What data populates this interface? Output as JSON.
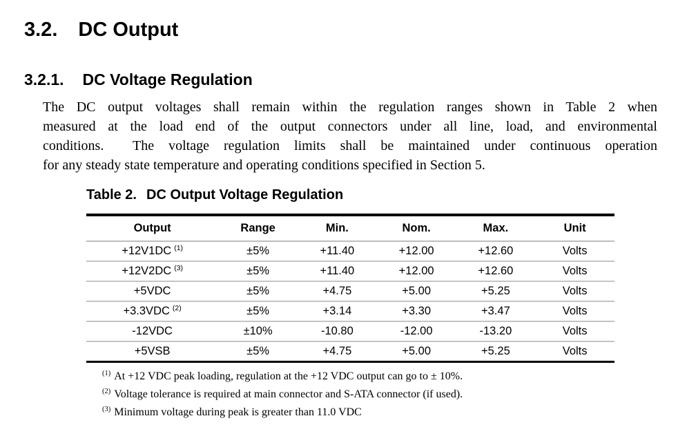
{
  "page": {
    "heading1": {
      "number": "3.2.",
      "title": "DC Output"
    },
    "heading2": {
      "number": "3.2.1.",
      "title": "DC Voltage Regulation"
    },
    "paragraph_lines": [
      "The DC output voltages shall remain within the regulation ranges shown in Table 2 when",
      "measured at the load end of the output connectors under all line, load, and environmental",
      "conditions.  The voltage regulation limits shall be maintained under continuous operation",
      "for any steady state temperature and operating conditions specified in Section 5."
    ]
  },
  "table": {
    "caption": {
      "label": "Table 2.",
      "title": "DC Output Voltage Regulation"
    },
    "headers": [
      "Output",
      "Range",
      "Min.",
      "Nom.",
      "Max.",
      "Unit"
    ],
    "rows": [
      {
        "output": "+12V1DC",
        "footnote": "(1)",
        "range": "±5%",
        "min": "+11.40",
        "nom": "+12.00",
        "max": "+12.60",
        "unit": "Volts"
      },
      {
        "output": "+12V2DC",
        "footnote": "(3)",
        "range": "±5%",
        "min": "+11.40",
        "nom": "+12.00",
        "max": "+12.60",
        "unit": "Volts"
      },
      {
        "output": "+5VDC",
        "footnote": "",
        "range": "±5%",
        "min": "+4.75",
        "nom": "+5.00",
        "max": "+5.25",
        "unit": "Volts"
      },
      {
        "output": "+3.3VDC",
        "footnote": "(2)",
        "range": "±5%",
        "min": "+3.14",
        "nom": "+3.30",
        "max": "+3.47",
        "unit": "Volts"
      },
      {
        "output": "-12VDC",
        "footnote": "",
        "range": "±10%",
        "min": "-10.80",
        "nom": "-12.00",
        "max": "-13.20",
        "unit": "Volts"
      },
      {
        "output": "+5VSB",
        "footnote": "",
        "range": "±5%",
        "min": "+4.75",
        "nom": "+5.00",
        "max": "+5.25",
        "unit": "Volts"
      }
    ]
  },
  "footnotes": [
    {
      "marker": "(1)",
      "text": "At +12 VDC peak loading, regulation at the +12 VDC output can go to ± 10%."
    },
    {
      "marker": "(2)",
      "text": "Voltage tolerance is required at main connector and S-ATA connector (if used)."
    },
    {
      "marker": "(3)",
      "text": "Minimum voltage during peak is greater than 11.0 VDC"
    }
  ]
}
